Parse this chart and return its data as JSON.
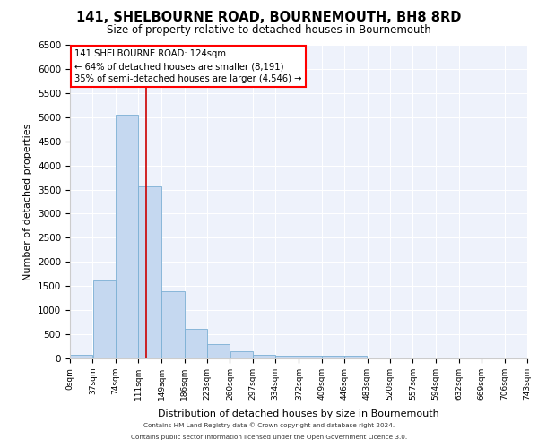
{
  "title": "141, SHELBOURNE ROAD, BOURNEMOUTH, BH8 8RD",
  "subtitle": "Size of property relative to detached houses in Bournemouth",
  "xlabel": "Distribution of detached houses by size in Bournemouth",
  "ylabel": "Number of detached properties",
  "bar_color": "#c5d8f0",
  "bar_edge_color": "#7bafd4",
  "background_color": "#eef2fb",
  "grid_color": "#ffffff",
  "annotation_text": "141 SHELBOURNE ROAD: 124sqm\n← 64% of detached houses are smaller (8,191)\n35% of semi-detached houses are larger (4,546) →",
  "vline_x": 124,
  "vline_color": "#cc0000",
  "bin_edges": [
    0,
    37,
    74,
    111,
    149,
    186,
    223,
    260,
    297,
    334,
    372,
    409,
    446,
    483,
    520,
    557,
    594,
    632,
    669,
    706,
    743
  ],
  "bar_heights": [
    75,
    1620,
    5060,
    3560,
    1400,
    620,
    300,
    150,
    80,
    50,
    60,
    50,
    60,
    0,
    0,
    0,
    0,
    0,
    0,
    0
  ],
  "ylim": [
    0,
    6500
  ],
  "xlim": [
    0,
    743
  ],
  "yticks": [
    0,
    500,
    1000,
    1500,
    2000,
    2500,
    3000,
    3500,
    4000,
    4500,
    5000,
    5500,
    6000,
    6500
  ],
  "footer_lines": [
    "Contains HM Land Registry data © Crown copyright and database right 2024.",
    "Contains public sector information licensed under the Open Government Licence 3.0."
  ]
}
